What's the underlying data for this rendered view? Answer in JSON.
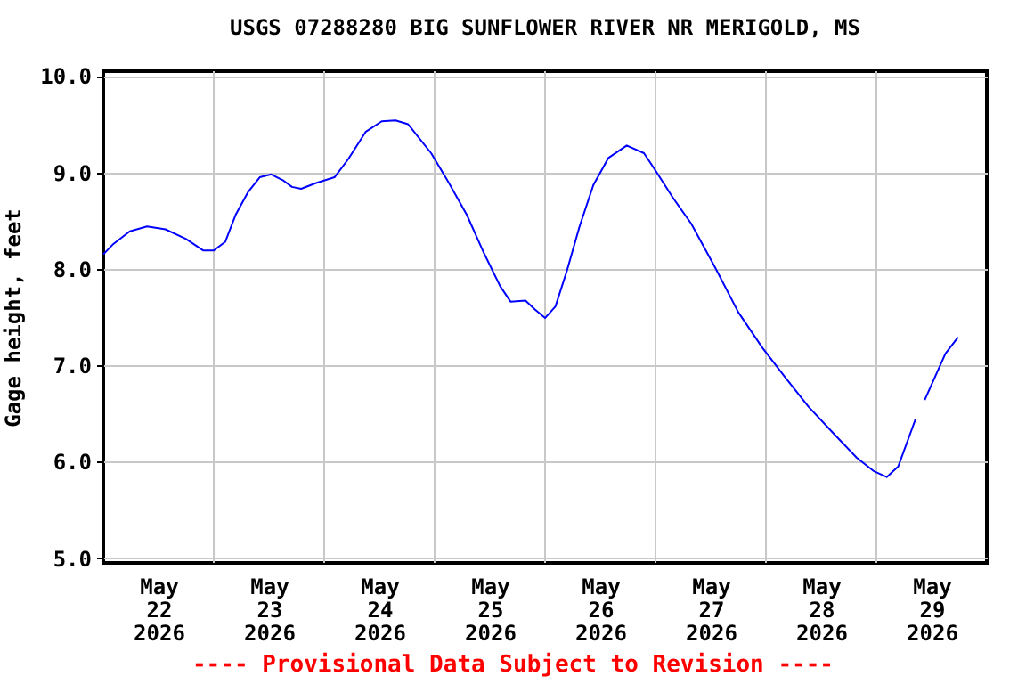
{
  "chart_data": {
    "type": "line",
    "title": "USGS 07288280 BIG SUNFLOWER RIVER NR MERIGOLD, MS",
    "ylabel": "Gage height, feet",
    "annotations": [
      "---- Provisional Data Subject to Revision ----"
    ],
    "x": [
      "2026-05-22T00:00",
      "2026-05-22T02:00",
      "2026-05-22T05:45",
      "2026-05-22T09:30",
      "2026-05-22T13:30",
      "2026-05-22T18:00",
      "2026-05-22T21:45",
      "2026-05-23T00:00",
      "2026-05-23T02:30",
      "2026-05-23T04:45",
      "2026-05-23T07:30",
      "2026-05-23T10:00",
      "2026-05-23T12:30",
      "2026-05-23T15:00",
      "2026-05-23T17:00",
      "2026-05-23T19:00",
      "2026-05-23T22:15",
      "2026-05-24T02:15",
      "2026-05-24T05:15",
      "2026-05-24T09:00",
      "2026-05-24T12:30",
      "2026-05-24T15:30",
      "2026-05-24T18:15",
      "2026-05-24T23:15",
      "2026-05-25T03:00",
      "2026-05-25T07:00",
      "2026-05-25T10:45",
      "2026-05-25T14:15",
      "2026-05-25T16:30",
      "2026-05-25T19:45",
      "2026-05-25T21:45",
      "2026-05-26T00:00",
      "2026-05-26T02:15",
      "2026-05-26T04:45",
      "2026-05-26T07:30",
      "2026-05-26T10:30",
      "2026-05-26T13:45",
      "2026-05-26T17:45",
      "2026-05-26T21:30",
      "2026-05-27T00:00",
      "2026-05-27T03:45",
      "2026-05-27T07:45",
      "2026-05-27T13:00",
      "2026-05-27T18:00",
      "2026-05-27T23:15",
      "2026-05-28T04:15",
      "2026-05-28T09:15",
      "2026-05-28T14:45",
      "2026-05-28T19:45",
      "2026-05-28T23:30",
      "2026-05-29T02:15",
      "2026-05-29T04:45",
      "2026-05-29T08:30",
      "2026-05-29T09:30",
      "2026-05-29T10:30",
      "2026-05-29T15:00",
      "2026-05-29T17:45"
    ],
    "series": [
      {
        "color": "#0000ff",
        "values": [
          8.15,
          8.25,
          8.39,
          8.44,
          8.41,
          8.31,
          8.19,
          8.19,
          8.28,
          8.56,
          8.8,
          8.95,
          8.98,
          8.92,
          8.85,
          8.83,
          8.89,
          8.95,
          9.14,
          9.42,
          9.53,
          9.54,
          9.5,
          9.2,
          8.9,
          8.56,
          8.16,
          7.82,
          7.66,
          7.67,
          7.58,
          7.49,
          7.61,
          7.98,
          8.44,
          8.87,
          9.15,
          9.28,
          9.2,
          9.02,
          8.74,
          8.47,
          8.01,
          7.55,
          7.18,
          6.87,
          6.57,
          6.29,
          6.04,
          5.9,
          5.84,
          5.95,
          6.44,
          null,
          6.64,
          7.12,
          7.29
        ]
      }
    ],
    "xlim": [
      "2026-05-22T00:00",
      "2026-05-30T00:00"
    ],
    "xticks": [
      {
        "value": "2026-05-22T12:00",
        "label": "May\n22\n2026"
      },
      {
        "value": "2026-05-23T12:00",
        "label": "May\n23\n2026"
      },
      {
        "value": "2026-05-24T12:00",
        "label": "May\n24\n2026"
      },
      {
        "value": "2026-05-25T12:00",
        "label": "May\n25\n2026"
      },
      {
        "value": "2026-05-26T12:00",
        "label": "May\n26\n2026"
      },
      {
        "value": "2026-05-27T12:00",
        "label": "May\n27\n2026"
      },
      {
        "value": "2026-05-28T12:00",
        "label": "May\n28\n2026"
      },
      {
        "value": "2026-05-29T12:00",
        "label": "May\n29\n2026"
      },
      {
        "value": "2026-05-23T00:00",
        "label": null
      },
      {
        "value": "2026-05-24T00:00",
        "label": null
      },
      {
        "value": "2026-05-25T00:00",
        "label": null
      },
      {
        "value": "2026-05-26T00:00",
        "label": null
      },
      {
        "value": "2026-05-27T00:00",
        "label": null
      },
      {
        "value": "2026-05-28T00:00",
        "label": null
      },
      {
        "value": "2026-05-29T00:00",
        "label": null
      }
    ],
    "ylim": [
      4.95,
      10.05
    ],
    "yticks": [
      {
        "value": 5,
        "label": "5.0"
      },
      {
        "value": 6,
        "label": "6.0"
      },
      {
        "value": 7,
        "label": "7.0"
      },
      {
        "value": 8,
        "label": "8.0"
      },
      {
        "value": 9,
        "label": "9.0"
      },
      {
        "value": 10,
        "label": "10.0"
      }
    ],
    "grid": true,
    "marker": "none",
    "line_style": "solid"
  }
}
